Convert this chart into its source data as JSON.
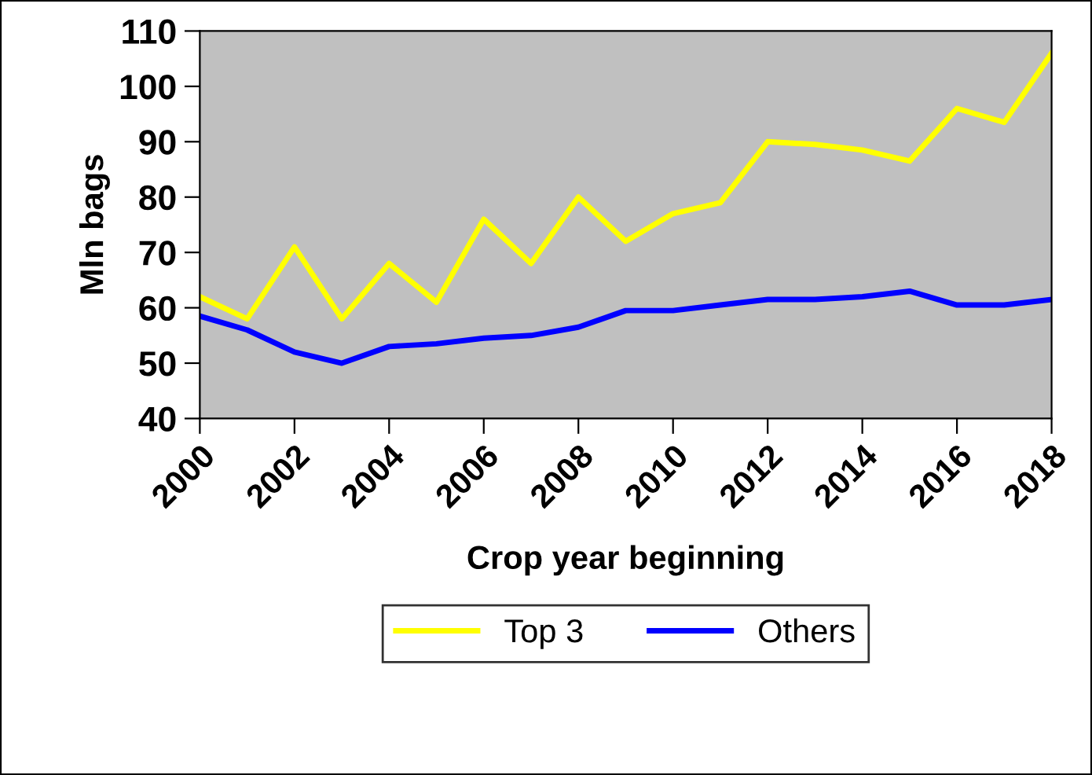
{
  "chart_data": {
    "type": "line",
    "xlabel": "Crop year beginning",
    "ylabel": "Mln bags",
    "x": [
      2000,
      2001,
      2002,
      2003,
      2004,
      2005,
      2006,
      2007,
      2008,
      2009,
      2010,
      2011,
      2012,
      2013,
      2014,
      2015,
      2016,
      2017,
      2018
    ],
    "series": [
      {
        "name": "Top 3",
        "color": "#ffff00",
        "values": [
          62,
          58,
          71,
          58,
          68,
          61,
          76,
          68,
          80,
          72,
          77,
          79,
          90,
          89.5,
          88.5,
          86.5,
          96,
          93.5,
          106
        ]
      },
      {
        "name": "Others",
        "color": "#0000ff",
        "values": [
          58.5,
          56,
          52,
          50,
          53,
          53.5,
          54.5,
          55,
          56.5,
          59.5,
          59.5,
          60.5,
          61.5,
          61.5,
          62,
          63,
          60.5,
          60.5,
          61.5
        ]
      }
    ],
    "xlim": [
      2000,
      2018
    ],
    "xticks": [
      2000,
      2002,
      2004,
      2006,
      2008,
      2010,
      2012,
      2014,
      2016,
      2018
    ],
    "ylim": [
      40,
      110
    ],
    "yticks": [
      40,
      50,
      60,
      70,
      80,
      90,
      100,
      110
    ],
    "grid": false,
    "legend": "bottom",
    "marker": "none",
    "line_style": "solid"
  }
}
